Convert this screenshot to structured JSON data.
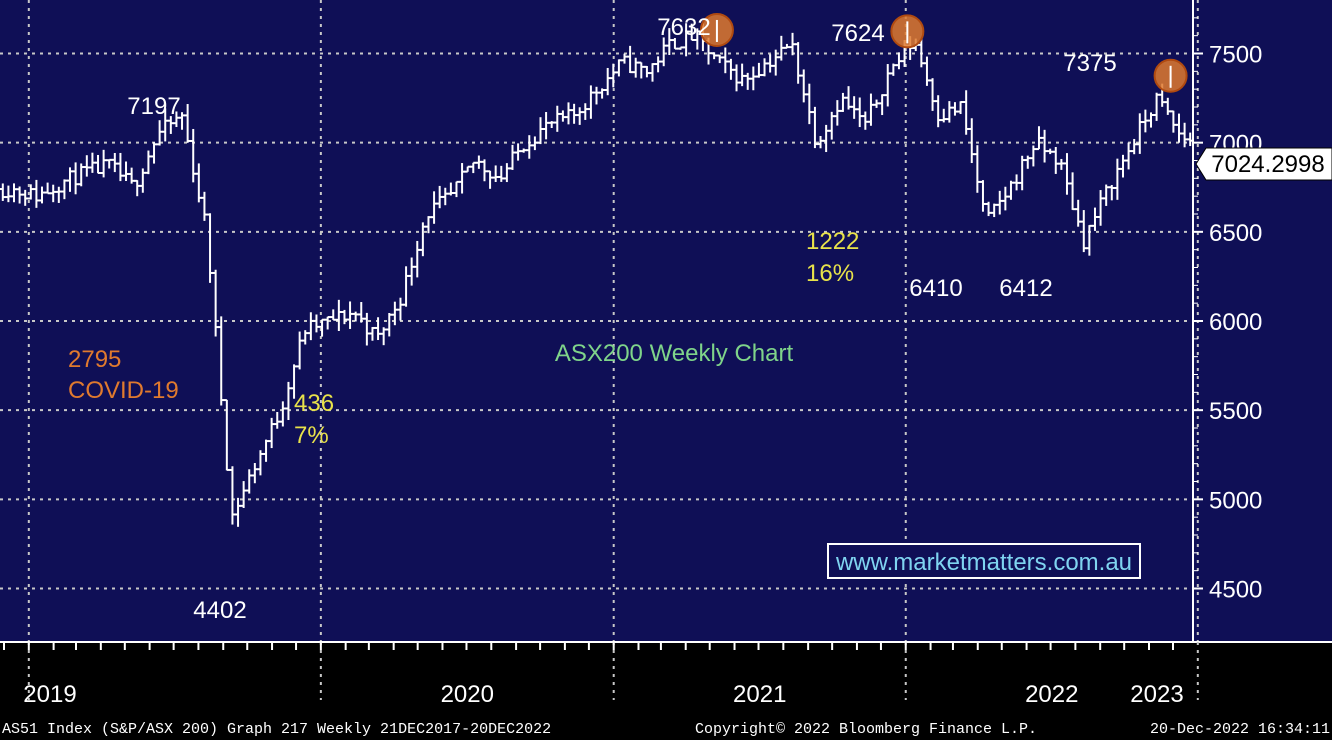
{
  "chart_data": {
    "type": "bar",
    "subtype": "ohlc-weekly",
    "title": "ASX200 Weekly Chart",
    "watermark": "www.marketmatters.com.au",
    "ylim": [
      4200,
      7800
    ],
    "grid": true,
    "y_ticks": [
      "4500",
      "5000",
      "5500",
      "6000",
      "6500",
      "7000",
      "7500"
    ],
    "x_ticks": [
      "2019",
      "2020",
      "2021",
      "2022",
      "2023"
    ],
    "last_price": "7024.2998",
    "series": [
      {
        "name": "AS51 Index",
        "x": [
          "2018-12",
          "2019-01",
          "2019-02",
          "2019-03",
          "2019-04",
          "2019-05",
          "2019-06",
          "2019-07",
          "2019-08",
          "2019-09",
          "2019-10",
          "2019-11",
          "2019-12",
          "2020-01",
          "2020-02",
          "2020-03",
          "2020-04",
          "2020-05",
          "2020-06",
          "2020-07",
          "2020-08",
          "2020-09",
          "2020-10",
          "2020-11",
          "2020-12",
          "2021-01",
          "2021-02",
          "2021-03",
          "2021-04",
          "2021-05",
          "2021-06",
          "2021-07",
          "2021-08",
          "2021-09",
          "2021-10",
          "2021-11",
          "2021-12",
          "2022-01",
          "2022-02",
          "2022-03",
          "2022-04",
          "2022-05",
          "2022-06",
          "2022-07",
          "2022-08",
          "2022-09",
          "2022-10",
          "2022-11",
          "2022-12"
        ],
        "values": [
          6740,
          6700,
          6780,
          6830,
          6870,
          6750,
          7050,
          7150,
          6500,
          4900,
          5200,
          5500,
          5950,
          6000,
          6050,
          5900,
          6150,
          6600,
          6700,
          6900,
          6800,
          7000,
          7100,
          7150,
          7300,
          7450,
          7400,
          7550,
          7600,
          7450,
          7350,
          7450,
          7550,
          7000,
          7250,
          7100,
          7400,
          7580,
          7150,
          7200,
          6550,
          6750,
          7000,
          6900,
          6450,
          6750,
          7000,
          7250,
          7024
        ]
      }
    ],
    "annotations": [
      {
        "text": "7197",
        "color": "#ffffff"
      },
      {
        "text": "4402",
        "color": "#ffffff"
      },
      {
        "text": "7632",
        "color": "#ffffff"
      },
      {
        "text": "7624",
        "color": "#ffffff"
      },
      {
        "text": "7375",
        "color": "#ffffff"
      },
      {
        "text": "6410",
        "color": "#ffffff"
      },
      {
        "text": "6412",
        "color": "#ffffff"
      },
      {
        "text": "2795",
        "color": "#e07a2e"
      },
      {
        "text": "COVID-19",
        "color": "#e07a2e"
      },
      {
        "text": "436",
        "color": "#e8e24a"
      },
      {
        "text": "7%",
        "color": "#e8e24a"
      },
      {
        "text": "1222",
        "color": "#e8e24a"
      },
      {
        "text": "16%",
        "color": "#e8e24a"
      }
    ],
    "highlight_peaks": [
      "7632",
      "7624",
      "7375"
    ],
    "colors": {
      "plot_bg": "#0f0f56",
      "bars": "#ffffff",
      "grid": "#c8c8c8",
      "title": "#7fd48a",
      "watermark": "#7fd4f0",
      "circle_fill": "#e07a2e",
      "circle_stroke": "#b04a10"
    }
  },
  "footer": {
    "left": "AS51 Index (S&P/ASX 200) Graph 217  Weekly 21DEC2017-20DEC2022",
    "center": "Copyright© 2022 Bloomberg Finance L.P.",
    "right": "20-Dec-2022 16:34:11"
  }
}
